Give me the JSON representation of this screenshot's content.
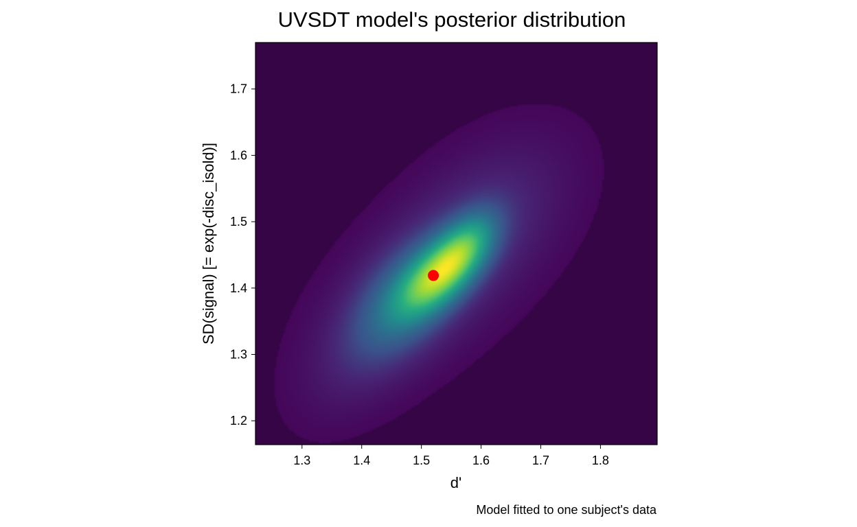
{
  "chart_data": {
    "type": "heatmap",
    "title": "UVSDT model's posterior distribution",
    "xlabel": "d'",
    "ylabel": "SD(signal) [= exp(-disc_isold)]",
    "caption": "Model fitted to one subject's data",
    "xlim": [
      1.222,
      1.895
    ],
    "ylim": [
      1.164,
      1.77
    ],
    "xticks": [
      1.3,
      1.4,
      1.5,
      1.6,
      1.7,
      1.8
    ],
    "yticks": [
      1.2,
      1.3,
      1.4,
      1.5,
      1.6,
      1.7
    ],
    "colormap": "viridis",
    "grid": false,
    "density_components": [
      {
        "x": 1.53,
        "y": 1.42,
        "sx": 0.045,
        "sy": 0.04,
        "rho": 0.6,
        "w": 1.0
      },
      {
        "x": 1.575,
        "y": 1.465,
        "sx": 0.035,
        "sy": 0.035,
        "rho": 0.5,
        "w": 0.5
      },
      {
        "x": 1.47,
        "y": 1.38,
        "sx": 0.06,
        "sy": 0.06,
        "rho": 0.5,
        "w": 0.35
      },
      {
        "x": 1.52,
        "y": 1.42,
        "sx": 0.11,
        "sy": 0.095,
        "rho": 0.6,
        "w": 0.2
      },
      {
        "x": 1.62,
        "y": 1.52,
        "sx": 0.09,
        "sy": 0.08,
        "rho": 0.4,
        "w": 0.08
      },
      {
        "x": 1.4,
        "y": 1.3,
        "sx": 0.07,
        "sy": 0.07,
        "rho": 0.5,
        "w": 0.06
      }
    ],
    "point_estimate": {
      "x": 1.52,
      "y": 1.419,
      "color": "#ff0000"
    },
    "colors": {
      "plot_background": "#360546",
      "frame": "#000000",
      "marker": "#ff0000"
    }
  }
}
